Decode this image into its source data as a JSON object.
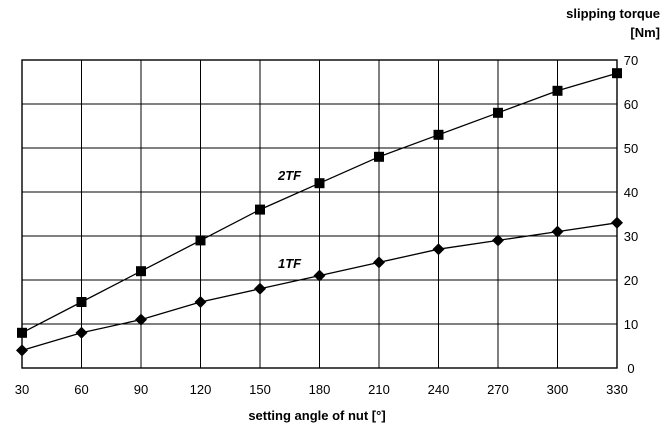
{
  "chart_data": {
    "type": "line",
    "xlabel": "setting angle of nut [°]",
    "ylabel_line1": "slipping torque",
    "ylabel_line2": "[Nm]",
    "xlim": [
      30,
      330
    ],
    "ylim": [
      0,
      70
    ],
    "x_ticks": [
      "30",
      "60",
      "90",
      "120",
      "150",
      "180",
      "210",
      "240",
      "270",
      "300",
      "330"
    ],
    "y_ticks": [
      "0",
      "10",
      "20",
      "30",
      "40",
      "50",
      "60",
      "70"
    ],
    "y_axis_side": "right",
    "grid": true,
    "x": [
      30,
      60,
      90,
      120,
      150,
      180,
      210,
      240,
      270,
      300,
      330
    ],
    "series": [
      {
        "name": "2TF",
        "marker": "square",
        "values": [
          8,
          15,
          22,
          29,
          36,
          42,
          48,
          53,
          58,
          63,
          67
        ]
      },
      {
        "name": "1TF",
        "marker": "diamond",
        "values": [
          4,
          8,
          11,
          15,
          18,
          21,
          24,
          27,
          29,
          31,
          33
        ]
      }
    ]
  }
}
